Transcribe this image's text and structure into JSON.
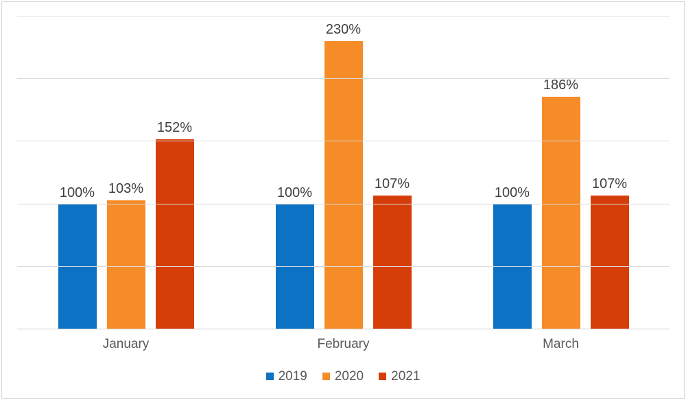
{
  "chart_data": {
    "type": "bar",
    "title": "",
    "xlabel": "",
    "ylabel": "",
    "categories": [
      "January",
      "February",
      "March"
    ],
    "series": [
      {
        "name": "2019",
        "color": "#0b72c4",
        "values": [
          100,
          100,
          100
        ],
        "labels": [
          "100%",
          "100%",
          "100%"
        ]
      },
      {
        "name": "2020",
        "color": "#f68c28",
        "values": [
          103,
          230,
          186
        ],
        "labels": [
          "103%",
          "230%",
          "186%"
        ]
      },
      {
        "name": "2021",
        "color": "#d63e09",
        "values": [
          152,
          107,
          107
        ],
        "labels": [
          "152%",
          "107%",
          "107%"
        ]
      }
    ],
    "value_suffix": "%",
    "ylim": [
      0,
      250
    ],
    "gridline_step": 50,
    "grid": true,
    "y_tick_labels_visible": false,
    "legend_position": "bottom"
  },
  "style": {
    "gridline_color": "#dadada",
    "axis_color": "#cccccc",
    "bar_label_color": "#404040",
    "category_label_color": "#595959",
    "legend_text_color": "#595959",
    "background": "#ffffff",
    "border_color": "#d5d5d5"
  }
}
